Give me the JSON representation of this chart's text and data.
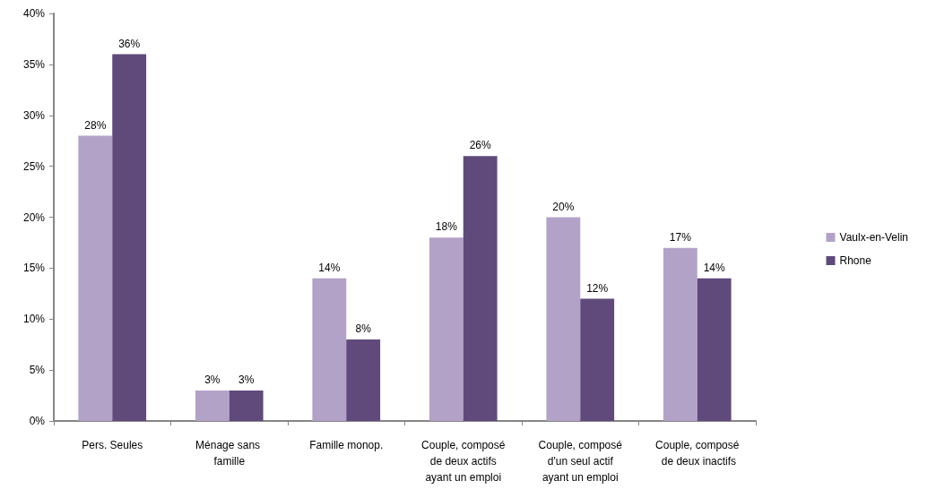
{
  "chart_data": {
    "type": "bar",
    "categories": [
      "Pers. Seules",
      "Ménage sans famille",
      "Famille monop.",
      "Couple, composé de deux actifs ayant un emploi",
      "Couple, composé d'un seul actif ayant un emploi",
      "Couple, composé de deux inactifs"
    ],
    "series": [
      {
        "name": "Vaulx-en-Velin",
        "color": "#b3a2c7",
        "values": [
          28,
          3,
          14,
          18,
          20,
          17
        ],
        "value_labels": [
          "28%",
          "3%",
          "14%",
          "18%",
          "20%",
          "17%"
        ]
      },
      {
        "name": "Rhone",
        "color": "#604a7b",
        "values": [
          36,
          3,
          8,
          26,
          12,
          14
        ],
        "value_labels": [
          "36%",
          "3%",
          "8%",
          "26%",
          "12%",
          "14%"
        ]
      }
    ],
    "ylim": [
      0,
      40
    ],
    "yticks": [
      {
        "value": 0,
        "label": "0%"
      },
      {
        "value": 5,
        "label": "5%"
      },
      {
        "value": 10,
        "label": "10%"
      },
      {
        "value": 15,
        "label": "15%"
      },
      {
        "value": 20,
        "label": "20%"
      },
      {
        "value": 25,
        "label": "25%"
      },
      {
        "value": 30,
        "label": "30%"
      },
      {
        "value": 35,
        "label": "35%"
      },
      {
        "value": 40,
        "label": "40%"
      }
    ],
    "grid": false,
    "legend": "right"
  }
}
